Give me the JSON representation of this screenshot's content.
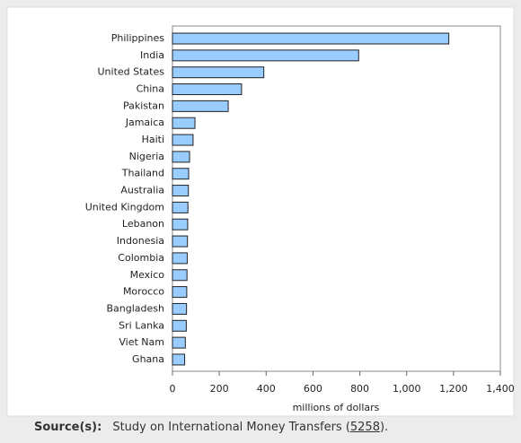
{
  "chart_data": {
    "type": "barh",
    "categories": [
      "Philippines",
      "India",
      "United States",
      "China",
      "Pakistan",
      "Jamaica",
      "Haiti",
      "Nigeria",
      "Thailand",
      "Australia",
      "United Kingdom",
      "Lebanon",
      "Indonesia",
      "Colombia",
      "Mexico",
      "Morocco",
      "Bangladesh",
      "Sri Lanka",
      "Viet Nam",
      "Ghana"
    ],
    "values": [
      1180,
      795,
      390,
      295,
      238,
      96,
      88,
      73,
      69,
      68,
      66,
      65,
      64,
      63,
      62,
      61,
      60,
      59,
      55,
      52
    ],
    "color": "#99ccff",
    "xlim": [
      0,
      1400
    ],
    "xticks": [
      0,
      200,
      400,
      600,
      800,
      {
        "value": 1000,
        "label": "1,000"
      },
      {
        "value": 1200,
        "label": "1,200"
      },
      {
        "value": 1400,
        "label": "1,400"
      }
    ],
    "xlabel": "millions of dollars"
  },
  "source": {
    "label": "Source(s):",
    "text": "Study on International Money Transfers (",
    "link": "5258",
    "tail": ")."
  }
}
